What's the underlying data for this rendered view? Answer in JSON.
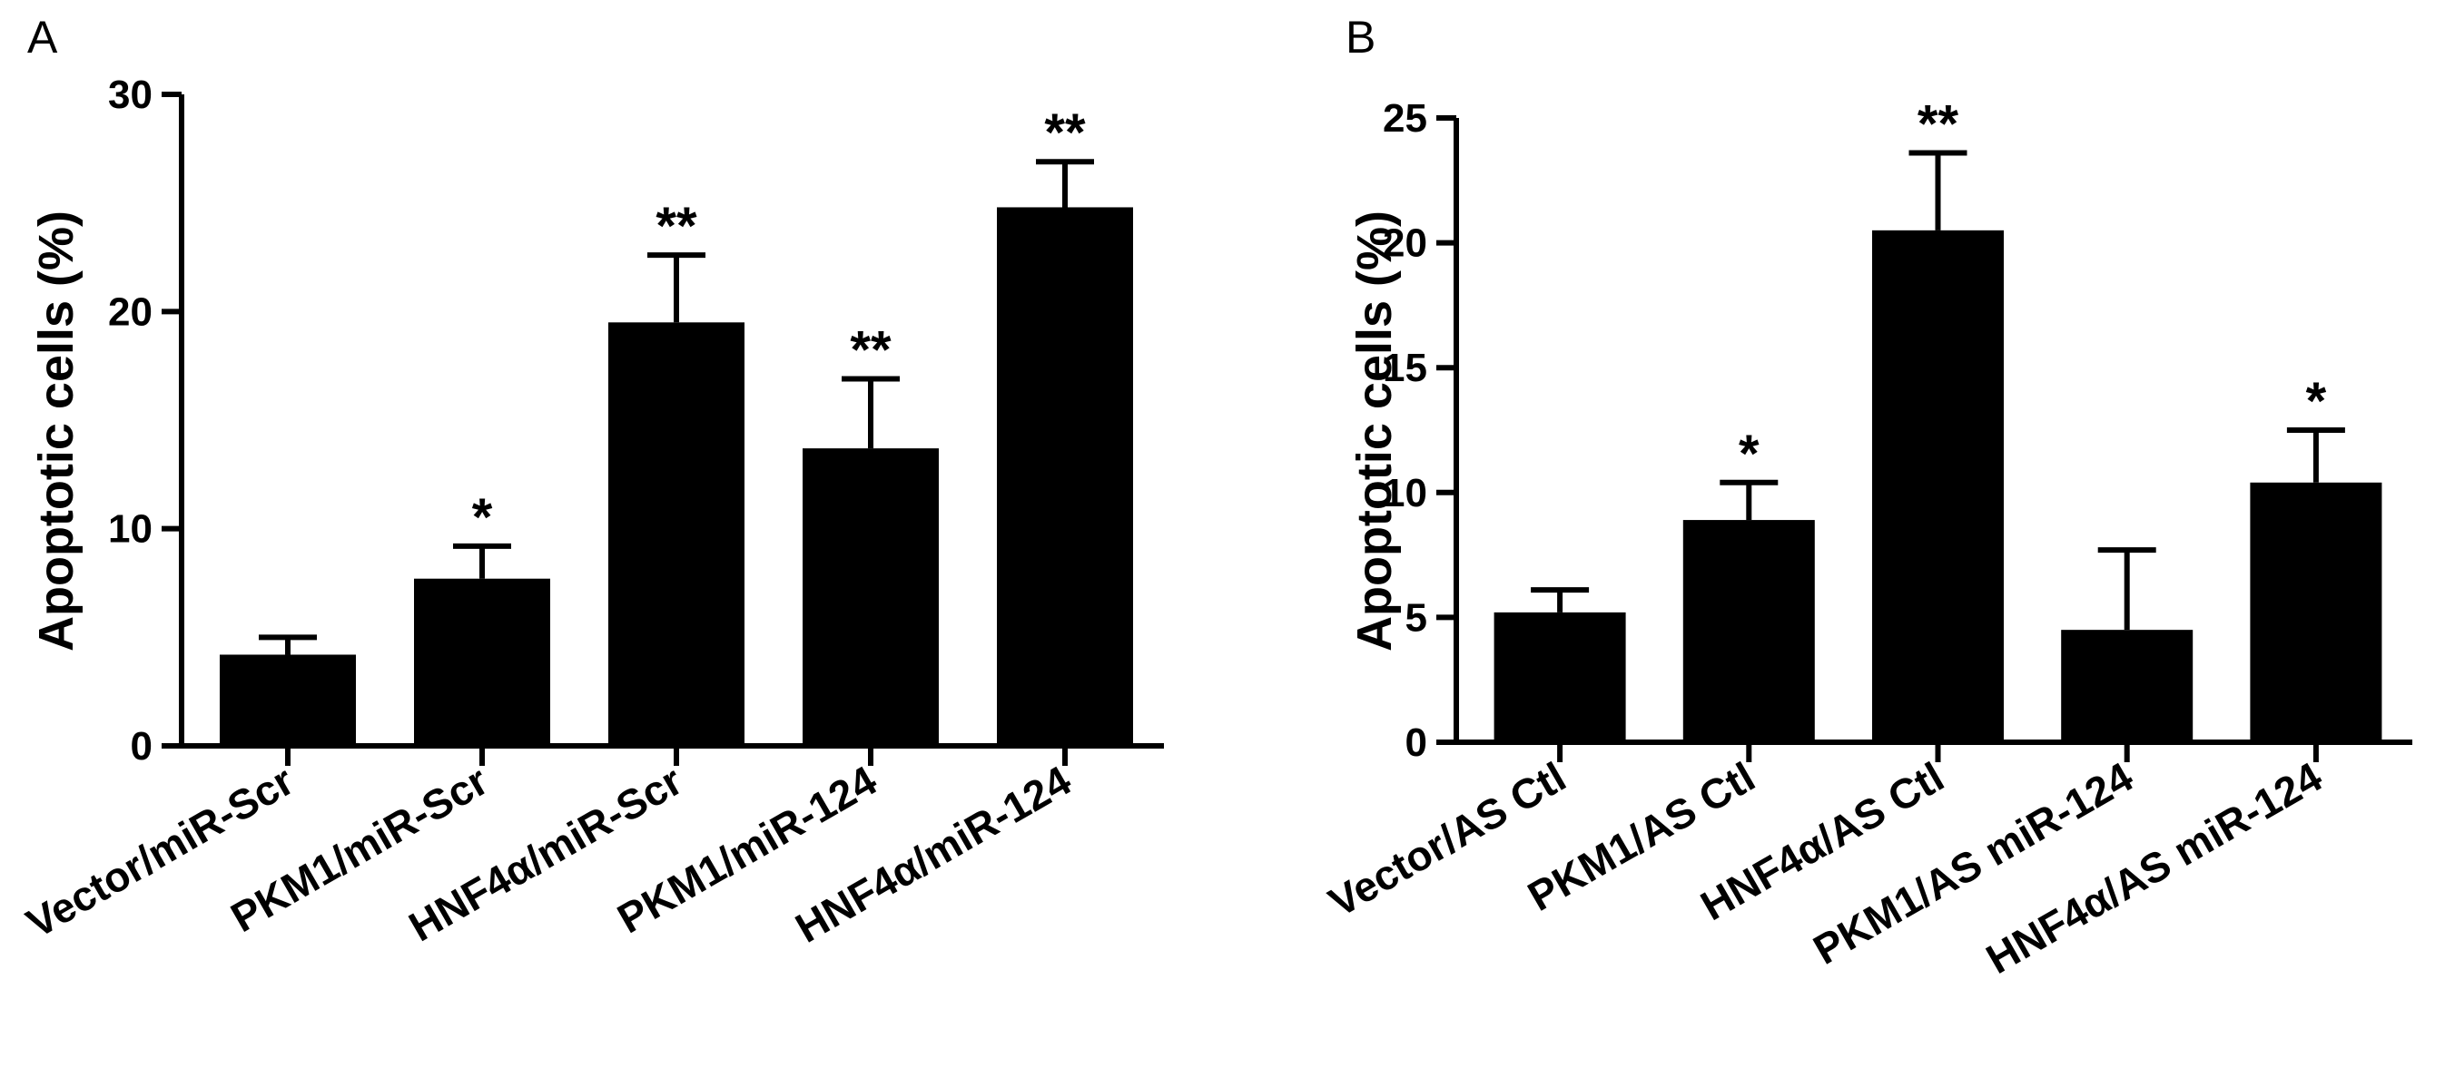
{
  "chart_data": [
    {
      "panel": "A",
      "type": "bar",
      "title": "",
      "xlabel": "",
      "ylabel": "Apoptotic cells (%)",
      "ylim": [
        0,
        30
      ],
      "yticks": [
        0,
        10,
        20,
        30
      ],
      "categories": [
        "Vector/miR-Scr",
        "PKM1/miR-Scr",
        "HNF4α/miR-Scr",
        "PKM1/miR-124",
        "HNF4α/miR-124"
      ],
      "values": [
        4.2,
        7.7,
        19.5,
        13.7,
        24.8
      ],
      "errors": [
        0.8,
        1.5,
        3.1,
        3.2,
        2.1
      ],
      "annotations": [
        "",
        "*",
        "**",
        "**",
        "**"
      ]
    },
    {
      "panel": "B",
      "type": "bar",
      "title": "",
      "xlabel": "",
      "ylabel": "Apoptotic cells (%)",
      "ylim": [
        0,
        25
      ],
      "yticks": [
        0,
        5,
        10,
        15,
        20,
        25
      ],
      "categories": [
        "Vector/AS Ctl",
        "PKM1/AS Ctl",
        "HNF4α/AS Ctl",
        "PKM1/AS miR-124",
        "HNF4α/AS miR-124"
      ],
      "values": [
        5.2,
        8.9,
        20.5,
        4.5,
        10.4
      ],
      "errors": [
        0.9,
        1.5,
        3.1,
        3.2,
        2.1
      ],
      "annotations": [
        "",
        "*",
        "**",
        "",
        "*"
      ]
    }
  ]
}
